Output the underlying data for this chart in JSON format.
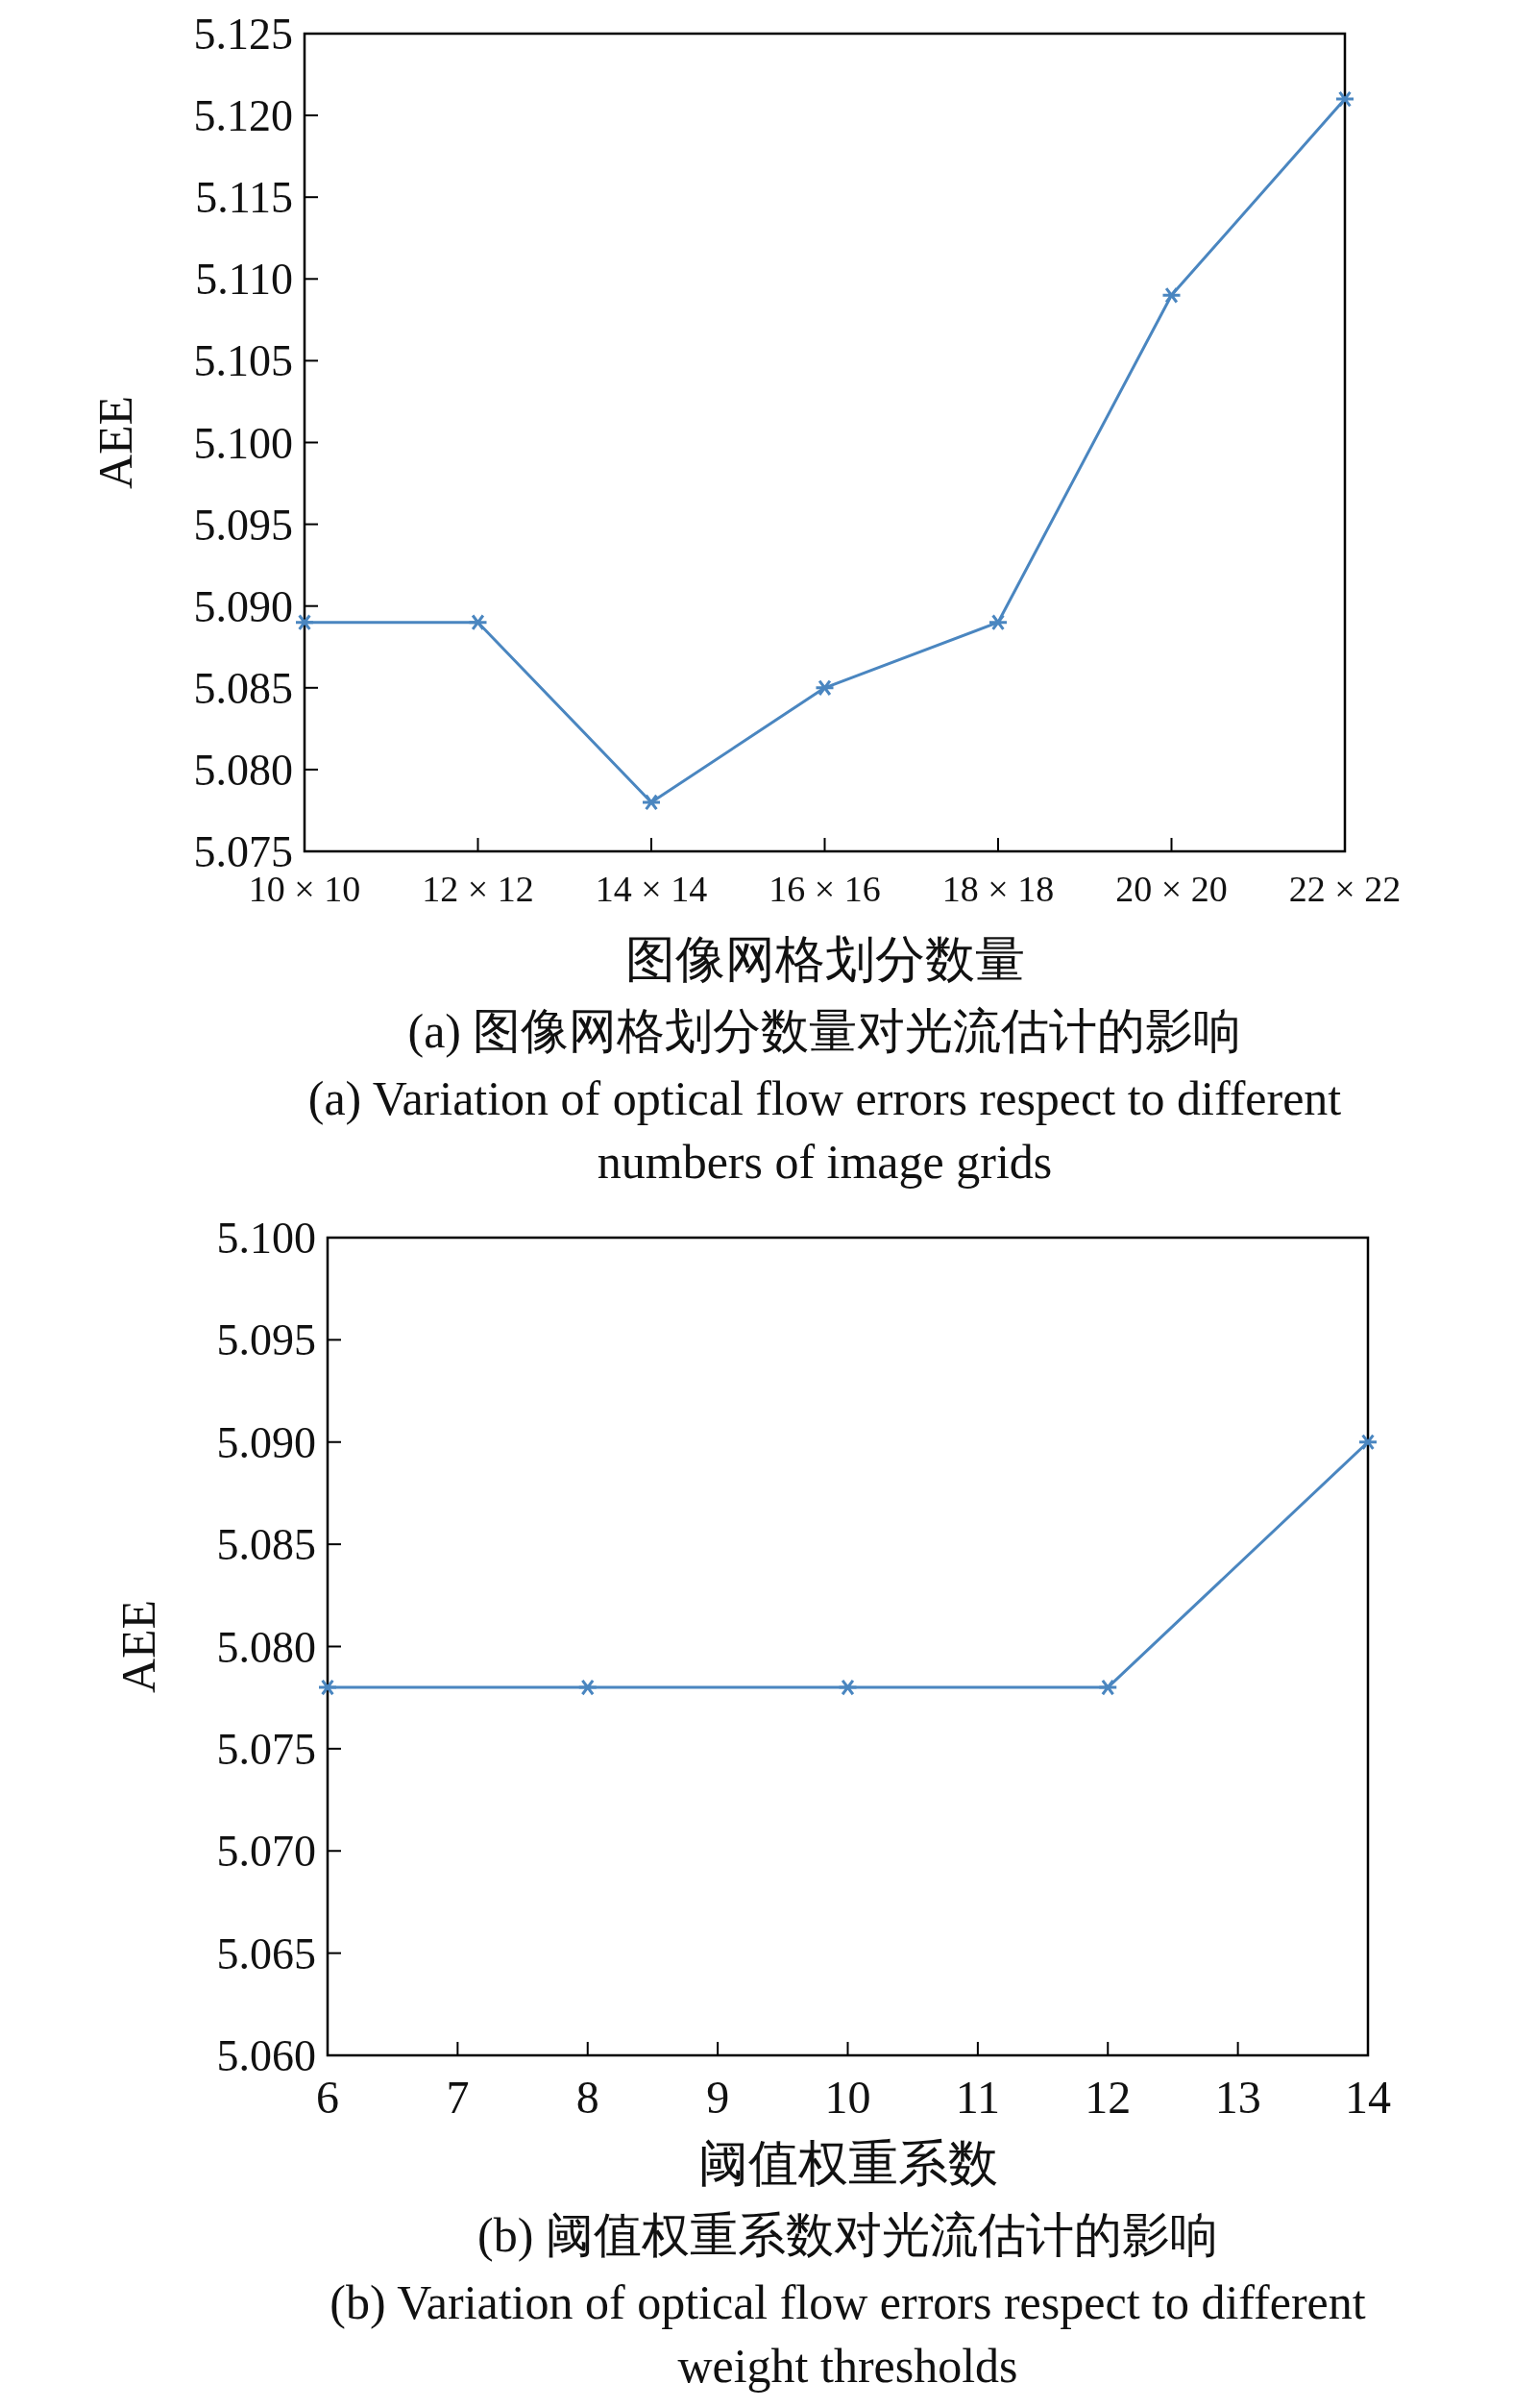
{
  "chart_data": [
    {
      "type": "line",
      "categories": [
        "10 × 10",
        "12 × 12",
        "14 × 14",
        "16 × 16",
        "18 × 18",
        "20 × 20",
        "22 × 22"
      ],
      "values": [
        5.089,
        5.089,
        5.078,
        5.085,
        5.089,
        5.109,
        5.121
      ],
      "color": "#4a86c0",
      "marker": "cross",
      "ylim": [
        5.075,
        5.125
      ],
      "yticks": [
        {
          "value": 5.075,
          "label": "5.075"
        },
        {
          "value": 5.08,
          "label": "5.080"
        },
        {
          "value": 5.085,
          "label": "5.085"
        },
        {
          "value": 5.09,
          "label": "5.090"
        },
        {
          "value": 5.095,
          "label": "5.095"
        },
        {
          "value": 5.1,
          "label": "5.100"
        },
        {
          "value": 5.105,
          "label": "5.105"
        },
        {
          "value": 5.11,
          "label": "5.110"
        },
        {
          "value": 5.115,
          "label": "5.115"
        },
        {
          "value": 5.12,
          "label": "5.120"
        },
        {
          "value": 5.125,
          "label": "5.125"
        }
      ],
      "xlabel": "图像网格划分数量",
      "ylabel": "AEE",
      "annotations": [
        "(a) 图像网格划分数量对光流估计的影响",
        "(a) Variation of optical flow errors respect to different numbers of image grids"
      ]
    },
    {
      "type": "line",
      "x": [
        6,
        8,
        10,
        12,
        14
      ],
      "values": [
        5.078,
        5.078,
        5.078,
        5.078,
        5.09
      ],
      "color": "#4a86c0",
      "marker": "cross",
      "xlim": [
        6,
        14
      ],
      "xticks": [
        6,
        7,
        8,
        9,
        10,
        11,
        12,
        13,
        14
      ],
      "ylim": [
        5.06,
        5.1
      ],
      "yticks": [
        {
          "value": 5.06,
          "label": "5.060"
        },
        {
          "value": 5.065,
          "label": "5.065"
        },
        {
          "value": 5.07,
          "label": "5.070"
        },
        {
          "value": 5.075,
          "label": "5.075"
        },
        {
          "value": 5.08,
          "label": "5.080"
        },
        {
          "value": 5.085,
          "label": "5.085"
        },
        {
          "value": 5.09,
          "label": "5.090"
        },
        {
          "value": 5.095,
          "label": "5.095"
        },
        {
          "value": 5.1,
          "label": "5.100"
        }
      ],
      "xlabel": "阈值权重系数",
      "ylabel": "AEE",
      "annotations": [
        "(b) 阈值权重系数对光流估计的影响",
        "(b) Variation of optical flow errors respect to different weight thresholds"
      ]
    }
  ]
}
